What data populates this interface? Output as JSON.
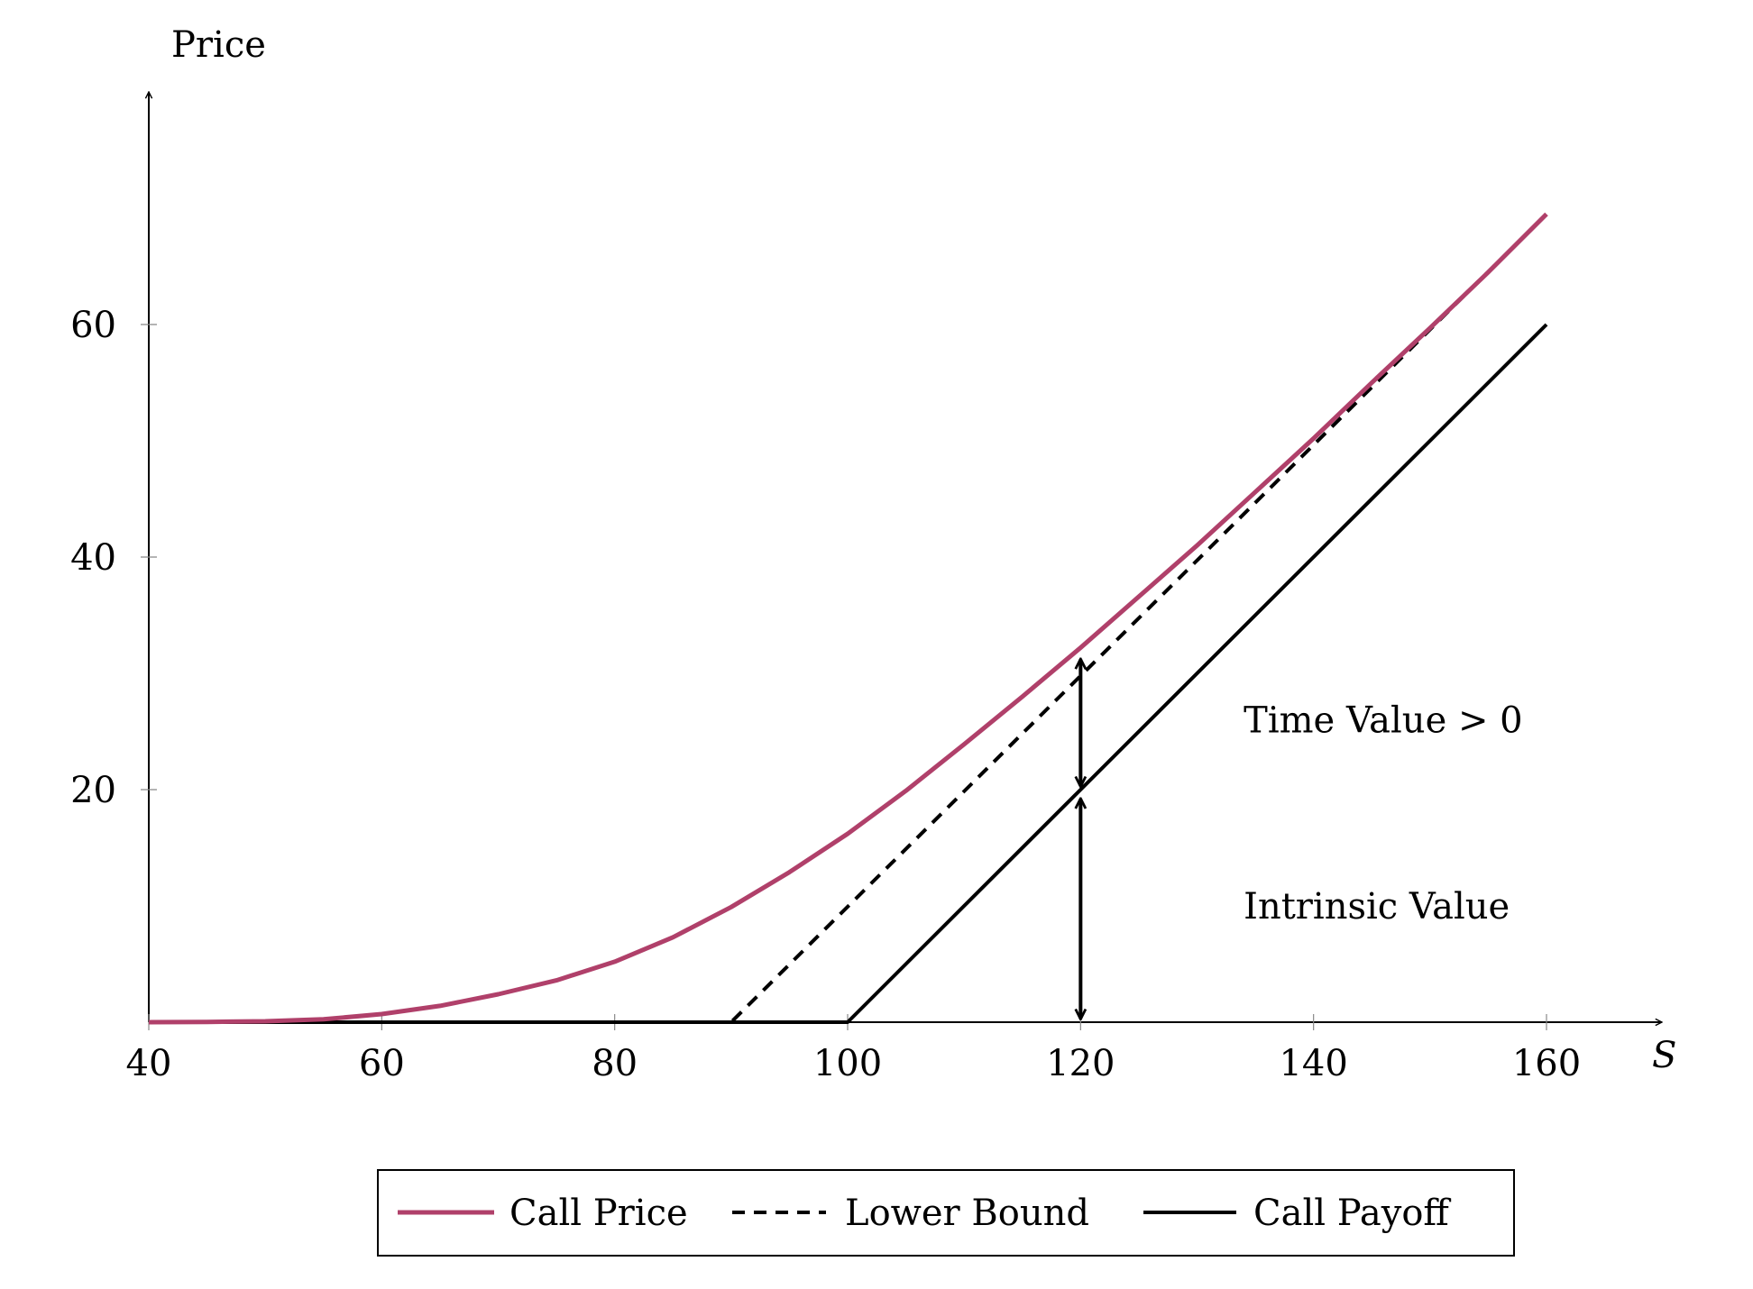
{
  "chart_data": {
    "type": "line",
    "xlabel": "S",
    "ylabel": "Price",
    "xlim": [
      40,
      170
    ],
    "ylim": [
      0,
      80
    ],
    "x_ticks": [
      40,
      60,
      80,
      100,
      120,
      140,
      160
    ],
    "y_ticks": [
      20,
      40,
      60
    ],
    "grid": false,
    "legend_position": "bottom",
    "series": [
      {
        "name": "Call Price",
        "style": "solid",
        "color": "#b0406a",
        "points": [
          [
            40,
            0.0
          ],
          [
            45,
            0.02
          ],
          [
            50,
            0.08
          ],
          [
            55,
            0.25
          ],
          [
            60,
            0.7
          ],
          [
            65,
            1.4
          ],
          [
            70,
            2.4
          ],
          [
            75,
            3.6
          ],
          [
            80,
            5.2
          ],
          [
            85,
            7.3
          ],
          [
            90,
            9.9
          ],
          [
            95,
            12.9
          ],
          [
            100,
            16.2
          ],
          [
            105,
            19.9
          ],
          [
            110,
            23.9
          ],
          [
            115,
            28.0
          ],
          [
            120,
            32.2
          ],
          [
            125,
            36.6
          ],
          [
            130,
            41.0
          ],
          [
            135,
            45.6
          ],
          [
            140,
            50.2
          ],
          [
            145,
            55.0
          ],
          [
            150,
            59.7
          ],
          [
            155,
            64.5
          ],
          [
            160,
            69.5
          ]
        ]
      },
      {
        "name": "Lower Bound",
        "style": "dashed",
        "color": "#000000",
        "points": [
          [
            40,
            0
          ],
          [
            90,
            0
          ],
          [
            160,
            69.5
          ]
        ]
      },
      {
        "name": "Call Payoff",
        "style": "solid",
        "color": "#000000",
        "points": [
          [
            40,
            0
          ],
          [
            100,
            0
          ],
          [
            160,
            60
          ]
        ]
      }
    ],
    "annotations": [
      {
        "text": "Time Value > 0",
        "x": 134,
        "y": 26,
        "arrow_from": [
          120,
          20
        ],
        "arrow_to": [
          120,
          31.5
        ]
      },
      {
        "text": "Intrinsic Value",
        "x": 134,
        "y": 10,
        "arrow_from": [
          120,
          0
        ],
        "arrow_to": [
          120,
          19.5
        ]
      }
    ]
  }
}
